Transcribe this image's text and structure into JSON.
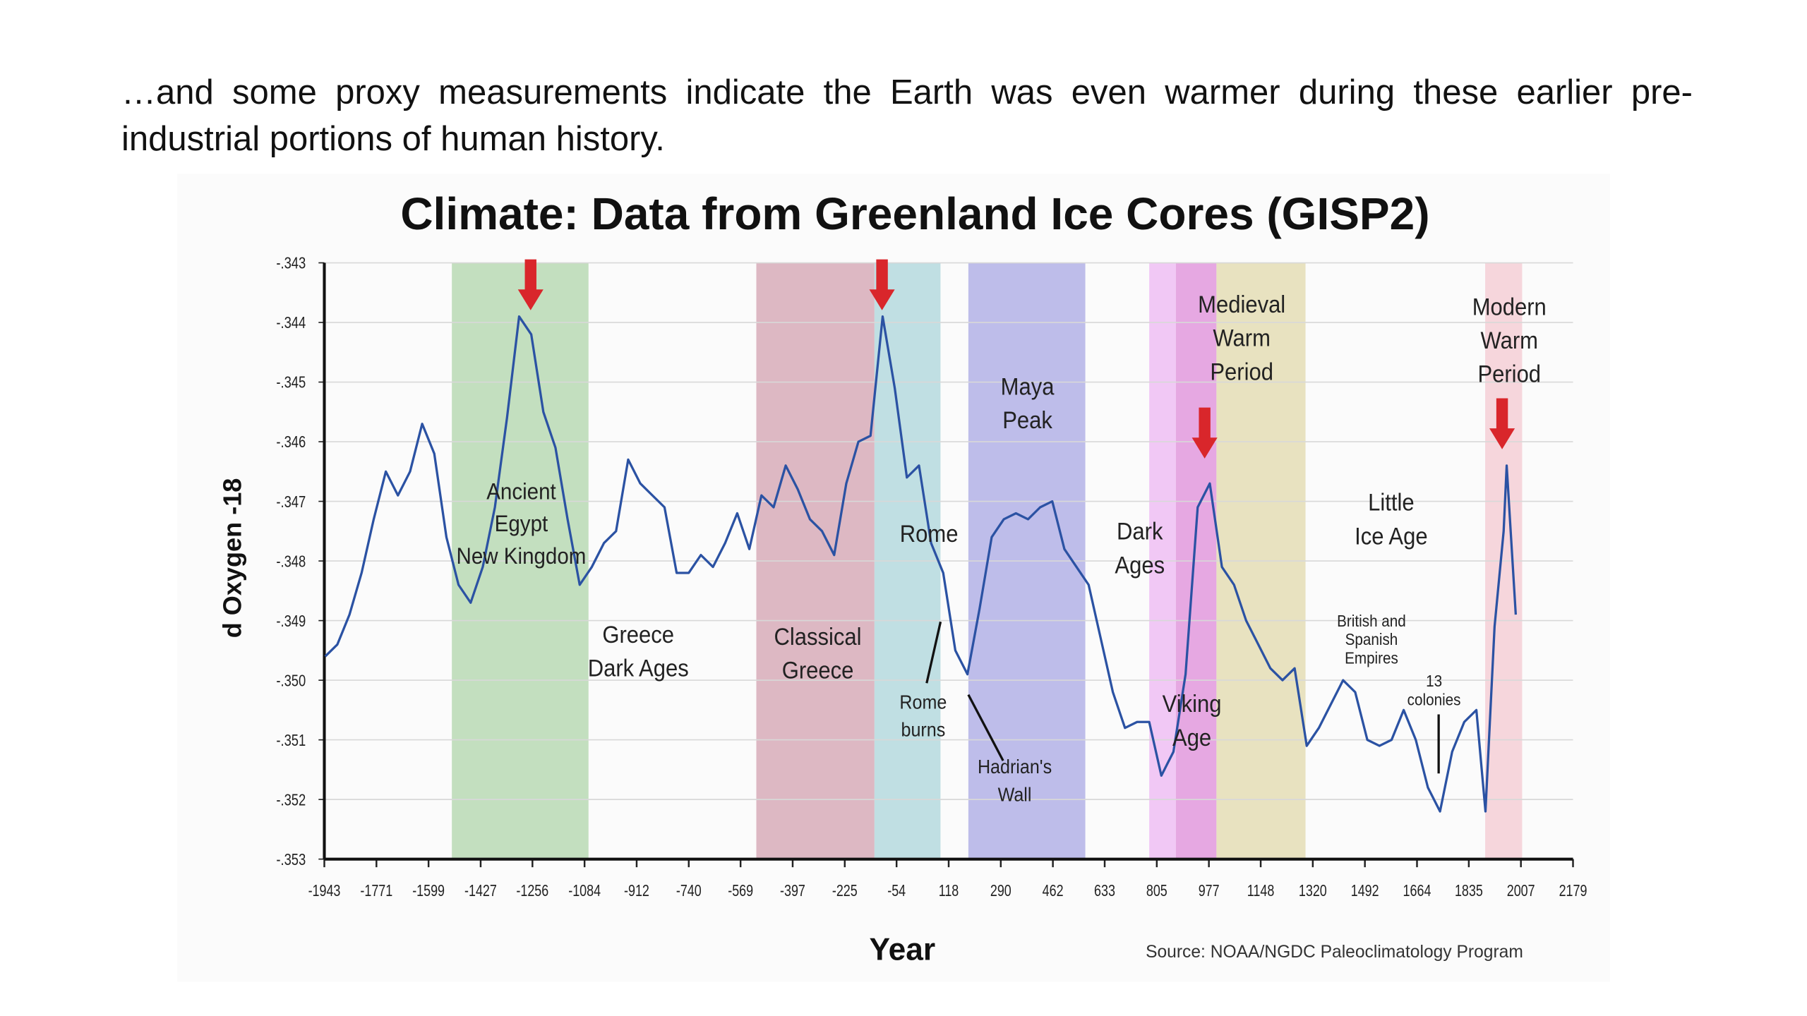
{
  "slide": {
    "text": "…and some proxy measurements indicate the Earth was even warmer during these earlier pre-industrial portions of human history."
  },
  "chart_data": {
    "type": "line",
    "title": "Climate: Data from Greenland Ice Cores (GISP2)",
    "x_label": "Year",
    "y_label": "d Oxygen -18",
    "source": "Source: NOAA/NGDC Paleoclimatology Program",
    "xlim": [
      -1943,
      2179
    ],
    "xticks": [
      -1943,
      -1771,
      -1599,
      -1427,
      -1256,
      -1084,
      -912,
      -740,
      -569,
      -397,
      -225,
      -54,
      118,
      290,
      462,
      633,
      805,
      977,
      1148,
      1320,
      1492,
      1664,
      1835,
      2007,
      2179
    ],
    "ylim": [
      -0.353,
      -0.343
    ],
    "yticks": [
      {
        "value": -0.353,
        "label": "-.353"
      },
      {
        "value": -0.352,
        "label": "-.352"
      },
      {
        "value": -0.351,
        "label": "-.351"
      },
      {
        "value": -0.35,
        "label": "-.350"
      },
      {
        "value": -0.349,
        "label": "-.349"
      },
      {
        "value": -0.348,
        "label": "-.348"
      },
      {
        "value": -0.347,
        "label": "-.347"
      },
      {
        "value": -0.346,
        "label": "-.346"
      },
      {
        "value": -0.345,
        "label": "-.345"
      },
      {
        "value": -0.344,
        "label": "-.344"
      },
      {
        "value": -0.343,
        "label": "-.343"
      }
    ],
    "grid": true,
    "x": [
      -1940,
      -1900,
      -1860,
      -1820,
      -1780,
      -1740,
      -1700,
      -1660,
      -1620,
      -1580,
      -1540,
      -1500,
      -1460,
      -1420,
      -1380,
      -1340,
      -1300,
      -1260,
      -1220,
      -1180,
      -1140,
      -1100,
      -1060,
      -1020,
      -980,
      -940,
      -900,
      -860,
      -820,
      -780,
      -740,
      -700,
      -660,
      -620,
      -580,
      -540,
      -500,
      -460,
      -420,
      -380,
      -340,
      -300,
      -260,
      -220,
      -180,
      -140,
      -100,
      -60,
      -20,
      20,
      60,
      100,
      140,
      180,
      220,
      260,
      300,
      340,
      380,
      420,
      460,
      500,
      540,
      580,
      620,
      660,
      700,
      740,
      780,
      820,
      860,
      900,
      940,
      980,
      1020,
      1060,
      1100,
      1140,
      1180,
      1220,
      1260,
      1300,
      1340,
      1380,
      1420,
      1460,
      1500,
      1540,
      1580,
      1620,
      1660,
      1700,
      1740,
      1780,
      1820,
      1860,
      1890,
      1920,
      1950,
      1960,
      1990
    ],
    "series": [
      {
        "color": "#2b52a3",
        "values": [
          -0.3496,
          -0.3494,
          -0.3489,
          -0.3482,
          -0.3473,
          -0.3465,
          -0.3469,
          -0.3465,
          -0.3457,
          -0.3462,
          -0.3476,
          -0.3484,
          -0.3487,
          -0.3481,
          -0.3471,
          -0.3456,
          -0.3439,
          -0.3442,
          -0.3455,
          -0.3461,
          -0.3473,
          -0.3484,
          -0.3481,
          -0.3477,
          -0.3475,
          -0.3463,
          -0.3467,
          -0.3469,
          -0.3471,
          -0.3482,
          -0.3482,
          -0.3479,
          -0.3481,
          -0.3477,
          -0.3472,
          -0.3478,
          -0.3469,
          -0.3471,
          -0.3464,
          -0.3468,
          -0.3473,
          -0.3475,
          -0.3479,
          -0.3467,
          -0.346,
          -0.3459,
          -0.3439,
          -0.3451,
          -0.3466,
          -0.3464,
          -0.3477,
          -0.3482,
          -0.3495,
          -0.3499,
          -0.3488,
          -0.3476,
          -0.3473,
          -0.3472,
          -0.3473,
          -0.3471,
          -0.347,
          -0.3478,
          -0.3481,
          -0.3484,
          -0.3493,
          -0.3502,
          -0.3508,
          -0.3507,
          -0.3507,
          -0.3516,
          -0.3512,
          -0.3499,
          -0.3471,
          -0.3467,
          -0.3481,
          -0.3484,
          -0.349,
          -0.3494,
          -0.3498,
          -0.35,
          -0.3498,
          -0.3511,
          -0.3508,
          -0.3504,
          -0.35,
          -0.3502,
          -0.351,
          -0.3511,
          -0.351,
          -0.3505,
          -0.351,
          -0.3518,
          -0.3522,
          -0.3512,
          -0.3507,
          -0.3505,
          -0.3522,
          -0.3491,
          -0.3475,
          -0.3464,
          -0.3489
        ]
      }
    ],
    "bands": [
      {
        "x": [
          -1522,
          -1071
        ],
        "color": "#bcdcb8"
      },
      {
        "x": [
          -517,
          -127
        ],
        "color": "#d9b0bc"
      },
      {
        "x": [
          -127,
          91
        ],
        "color": "#b9dbe0"
      },
      {
        "x": [
          183,
          569
        ],
        "color": "#b7b6e8"
      },
      {
        "x": [
          780,
          868
        ],
        "color": "#f0c2f4"
      },
      {
        "x": [
          868,
          1002
        ],
        "color": "#e39fdf"
      },
      {
        "x": [
          1002,
          1296
        ],
        "color": "#e6dfb9"
      },
      {
        "x": [
          1889,
          2011
        ],
        "color": "#f5d2d8"
      }
    ],
    "arrows_x": [
      -1262,
      -102,
      963,
      1945
    ],
    "arrow_color": "#d9262b",
    "annotations": [
      [
        "Ancient",
        "Egypt",
        "New Kingdom"
      ],
      [
        "Greece",
        "Dark Ages"
      ],
      [
        "Classical",
        "Greece"
      ],
      [
        "Rome"
      ],
      [
        "Rome",
        "burns"
      ],
      [
        "Hadrian's",
        "Wall"
      ],
      [
        "Maya",
        "Peak"
      ],
      [
        "Dark",
        "Ages"
      ],
      [
        "Viking",
        "Age"
      ],
      [
        "Medieval",
        "Warm",
        "Period"
      ],
      [
        "Little",
        "Ice Age"
      ],
      [
        "British and",
        "Spanish",
        "Empires"
      ],
      [
        "13",
        "colonies"
      ],
      [
        "Modern",
        "Warm",
        "Period"
      ]
    ]
  }
}
